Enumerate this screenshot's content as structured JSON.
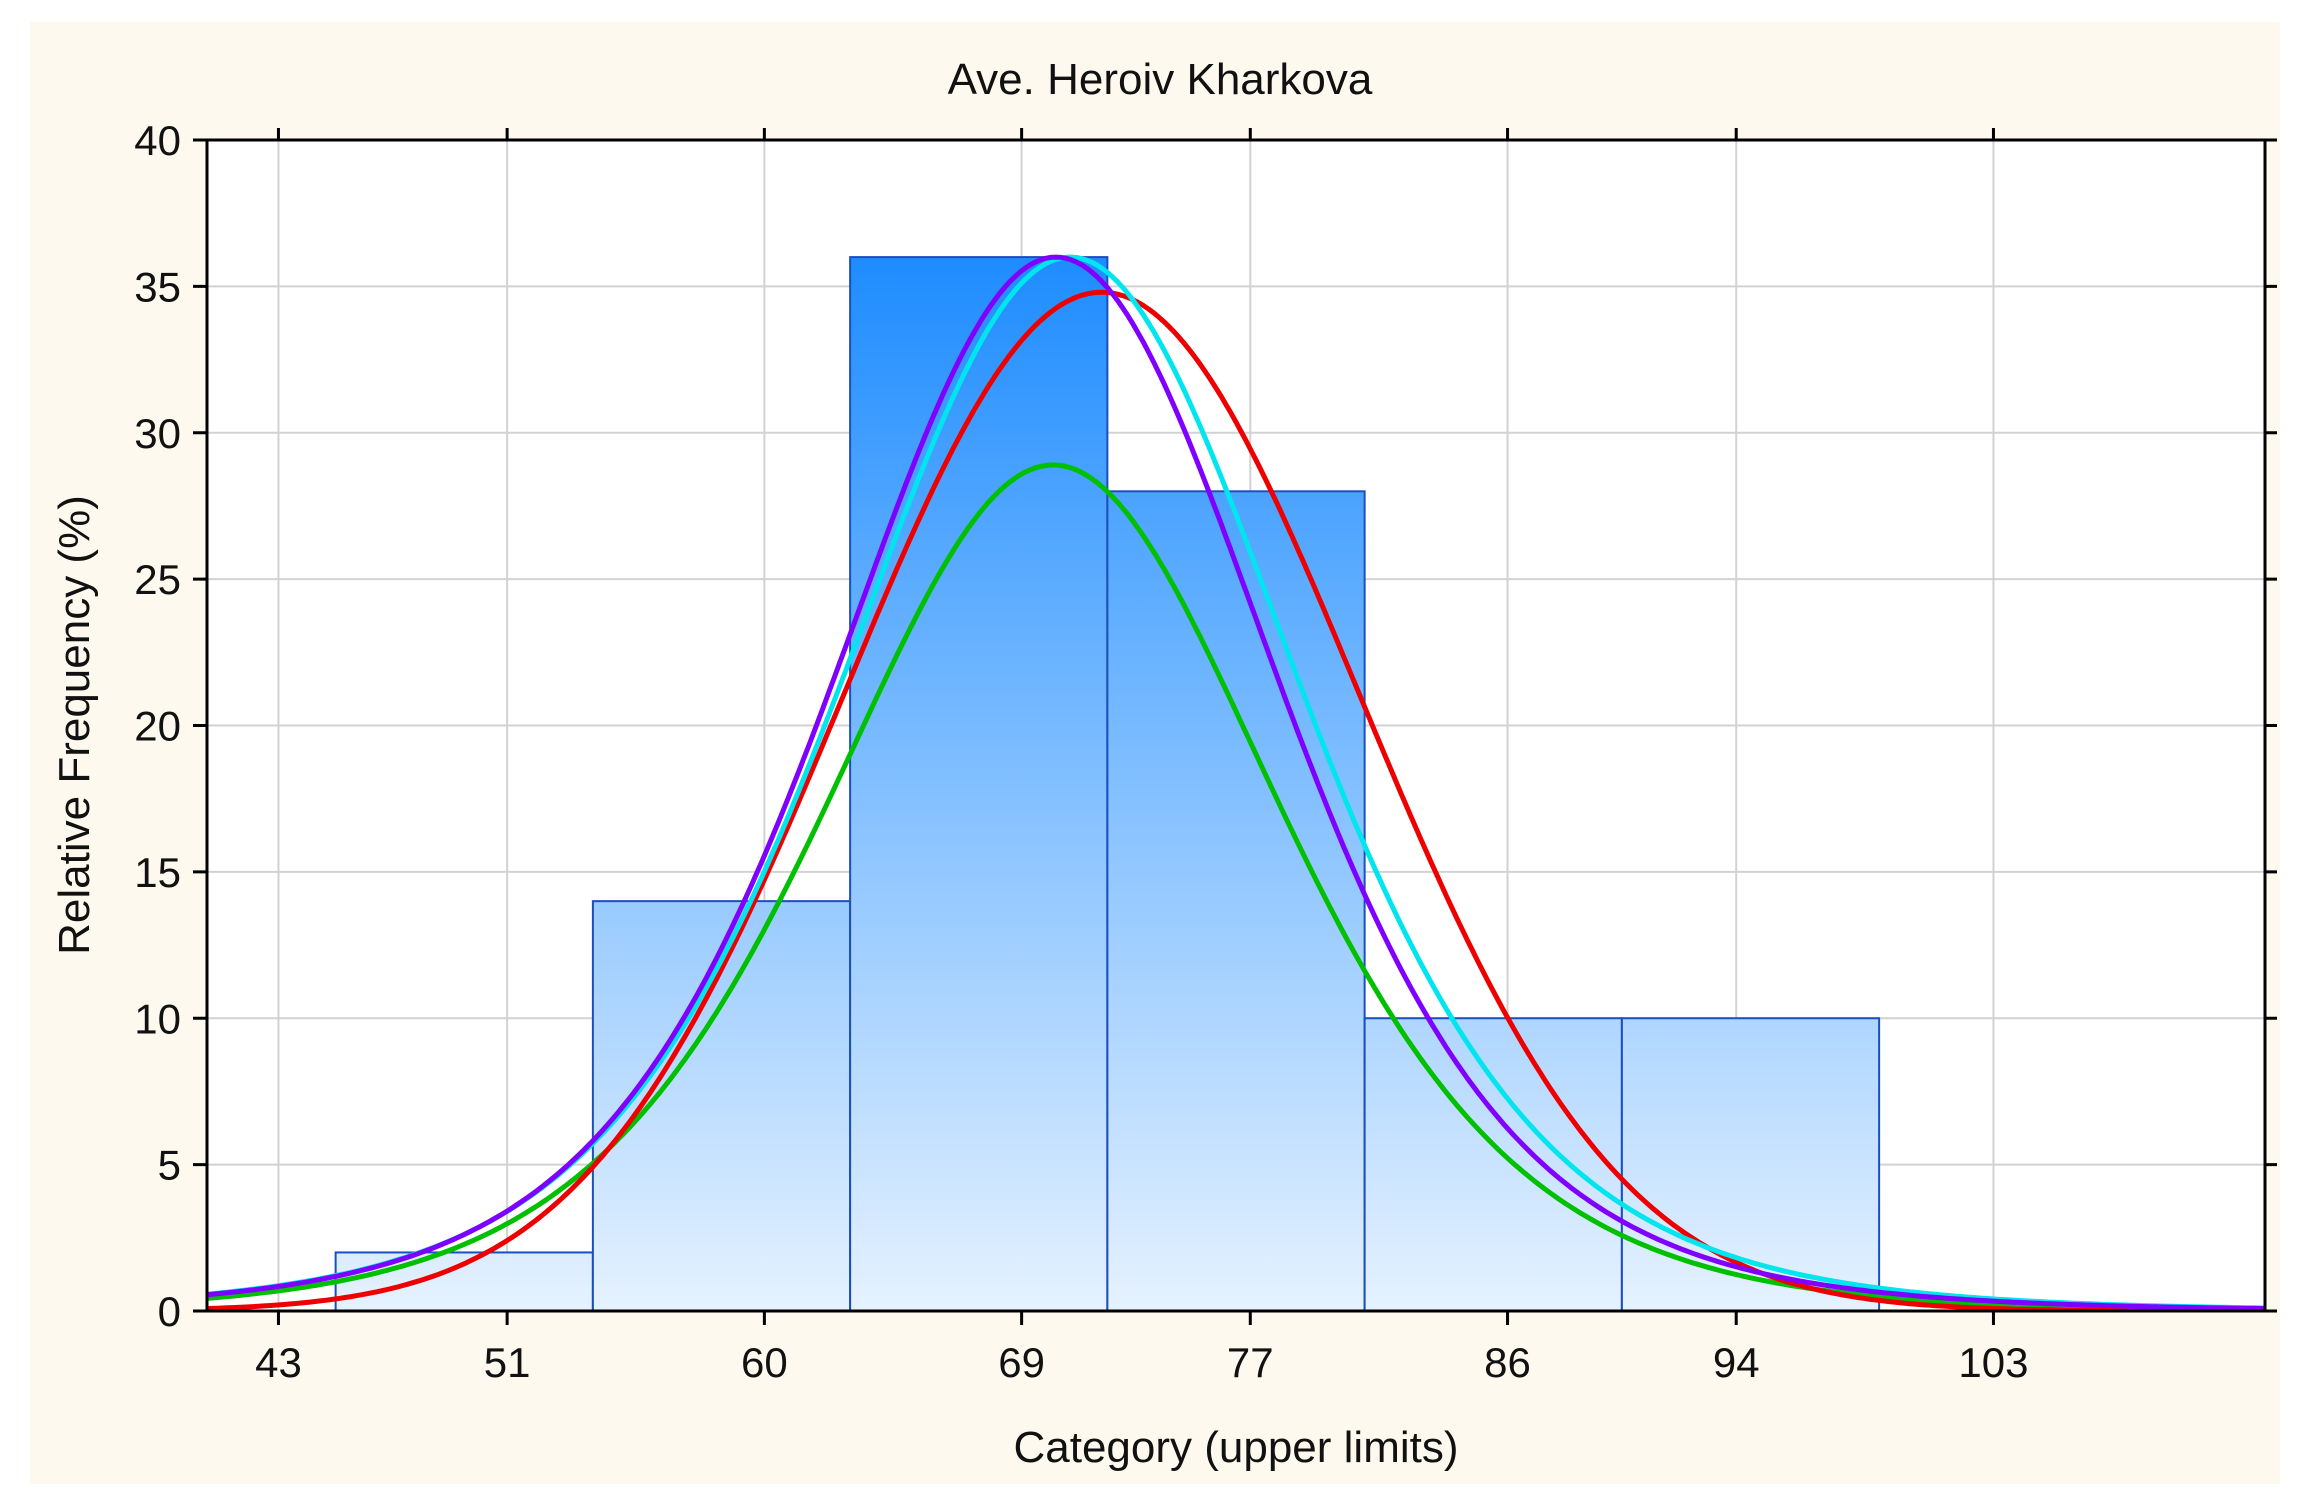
{
  "chart_data": {
    "type": "bar",
    "title": "Ave. Heroiv Kharkova",
    "xlabel": "Category (upper limits)",
    "ylabel": "Relative Frequency (%)",
    "xlim": [
      40.5,
      112.5
    ],
    "ylim": [
      0,
      40
    ],
    "x_ticks": [
      43,
      51,
      60,
      69,
      77,
      86,
      94,
      103
    ],
    "x_tick_labels": [
      "43",
      "51",
      "60",
      "69",
      "77",
      "86",
      "94",
      "103"
    ],
    "y_ticks": [
      0,
      5,
      10,
      15,
      20,
      25,
      30,
      35,
      40
    ],
    "y_tick_labels": [
      "0",
      "5",
      "10",
      "15",
      "20",
      "25",
      "30",
      "35",
      "40"
    ],
    "grid": true,
    "bins": [
      {
        "from": 45,
        "to": 54,
        "value": 2
      },
      {
        "from": 54,
        "to": 63,
        "value": 14
      },
      {
        "from": 63,
        "to": 72,
        "value": 36
      },
      {
        "from": 72,
        "to": 81,
        "value": 28
      },
      {
        "from": 81,
        "to": 90,
        "value": 10
      },
      {
        "from": 90,
        "to": 99,
        "value": 10
      }
    ],
    "bar_color_top": "#1e8cff",
    "bar_color_bottom": "#e6f2ff",
    "bar_edge_color": "#1a4fbf",
    "series": [
      {
        "name": "fit-green",
        "kind": "logistic",
        "mean": 70.1,
        "scale": 5.3,
        "peak": 28.9,
        "color": "#00c000"
      },
      {
        "name": "fit-red",
        "kind": "normal",
        "mean": 71.8,
        "sd": 9.0,
        "peak": 34.8,
        "color": "#ee0000"
      },
      {
        "name": "fit-cyan",
        "kind": "normal-tailed",
        "mean": 70.7,
        "sd": 8.2,
        "peak": 36.0,
        "color": "#00e5ee"
      },
      {
        "name": "fit-purple",
        "kind": "normal-tailed",
        "mean": 70.2,
        "sd": 8.0,
        "peak": 36.0,
        "color": "#7f00ff"
      }
    ]
  }
}
